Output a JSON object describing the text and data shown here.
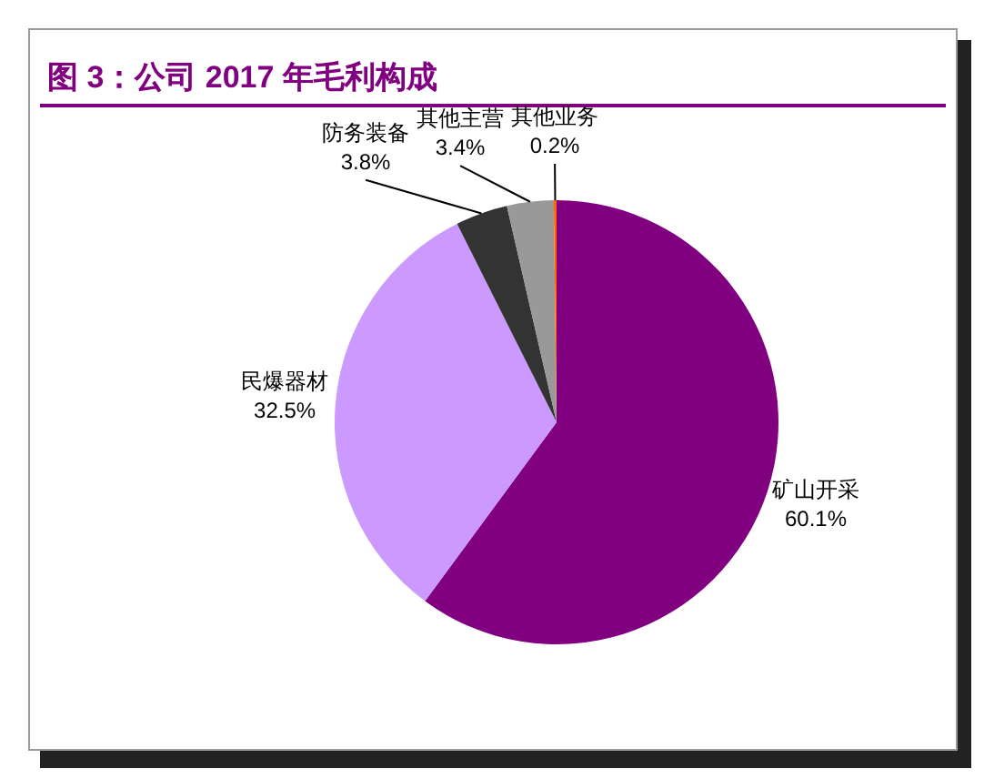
{
  "chart_data": {
    "type": "pie",
    "title": "图 3：公司 2017 年毛利构成",
    "categories": [
      "矿山开采",
      "民爆器材",
      "防务装备",
      "其他主营",
      "其他业务"
    ],
    "values": [
      60.1,
      32.5,
      3.8,
      3.4,
      0.2
    ],
    "colors": [
      "#800080",
      "#cc99ff",
      "#333333",
      "#999999",
      "#ff6600"
    ],
    "value_labels": [
      "60.1%",
      "32.5%",
      "3.8%",
      "3.4%",
      "0.2%"
    ]
  }
}
